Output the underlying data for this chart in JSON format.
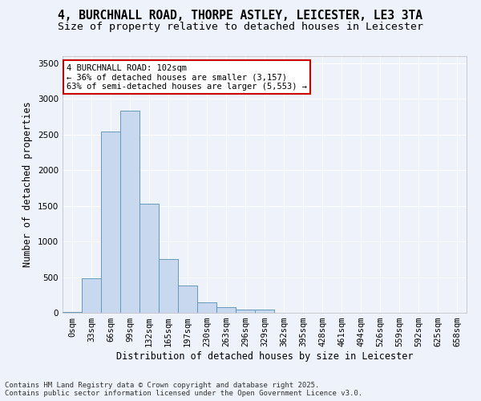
{
  "title_line1": "4, BURCHNALL ROAD, THORPE ASTLEY, LEICESTER, LE3 3TA",
  "title_line2": "Size of property relative to detached houses in Leicester",
  "xlabel": "Distribution of detached houses by size in Leicester",
  "ylabel": "Number of detached properties",
  "annotation_line1": "4 BURCHNALL ROAD: 102sqm",
  "annotation_line2": "← 36% of detached houses are smaller (3,157)",
  "annotation_line3": "63% of semi-detached houses are larger (5,553) →",
  "footer_line1": "Contains HM Land Registry data © Crown copyright and database right 2025.",
  "footer_line2": "Contains public sector information licensed under the Open Government Licence v3.0.",
  "bar_color": "#c8d8ee",
  "bar_edge_color": "#6699bb",
  "annotation_box_edge": "#cc0000",
  "annotation_box_fill": "#ffffff",
  "background_color": "#eef2fa",
  "grid_color": "#ffffff",
  "categories": [
    "0sqm",
    "33sqm",
    "66sqm",
    "99sqm",
    "132sqm",
    "165sqm",
    "197sqm",
    "230sqm",
    "263sqm",
    "296sqm",
    "329sqm",
    "362sqm",
    "395sqm",
    "428sqm",
    "461sqm",
    "494sqm",
    "526sqm",
    "559sqm",
    "592sqm",
    "625sqm",
    "658sqm"
  ],
  "values": [
    15,
    480,
    2540,
    2840,
    1530,
    750,
    380,
    145,
    75,
    40,
    40,
    5,
    5,
    0,
    0,
    0,
    0,
    0,
    0,
    0,
    0
  ],
  "ylim": [
    0,
    3600
  ],
  "yticks": [
    0,
    500,
    1000,
    1500,
    2000,
    2500,
    3000,
    3500
  ],
  "title_fontsize": 10.5,
  "subtitle_fontsize": 9.5,
  "axis_label_fontsize": 8.5,
  "tick_fontsize": 7.5,
  "annotation_fontsize": 7.5,
  "footer_fontsize": 6.5
}
